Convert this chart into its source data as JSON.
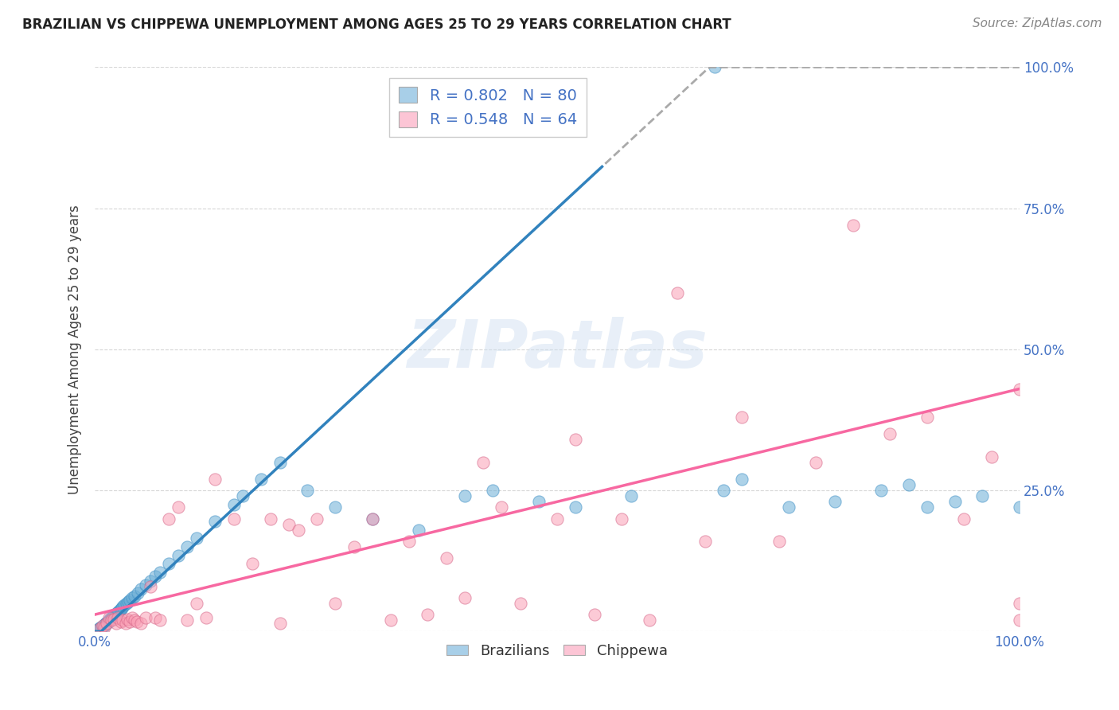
{
  "title": "BRAZILIAN VS CHIPPEWA UNEMPLOYMENT AMONG AGES 25 TO 29 YEARS CORRELATION CHART",
  "source": "Source: ZipAtlas.com",
  "ylabel": "Unemployment Among Ages 25 to 29 years",
  "xlim": [
    0,
    1.0
  ],
  "ylim": [
    0,
    1.0
  ],
  "blue_color": "#6baed6",
  "blue_fill": "#a8cfe8",
  "pink_color": "#fa9fb5",
  "pink_fill": "#fcc5d5",
  "regression_blue_color": "#3182bd",
  "regression_pink_color": "#f768a1",
  "regression_dashed_color": "#aaaaaa",
  "legend_R_blue": "0.802",
  "legend_N_blue": "80",
  "legend_R_pink": "0.548",
  "legend_N_pink": "64",
  "watermark": "ZIPatlas",
  "blue_slope": 1.52,
  "blue_intercept": -0.01,
  "pink_slope": 0.4,
  "pink_intercept": 0.03,
  "blue_scatter_x": [
    0.002,
    0.003,
    0.004,
    0.005,
    0.005,
    0.006,
    0.007,
    0.007,
    0.008,
    0.009,
    0.01,
    0.01,
    0.011,
    0.011,
    0.012,
    0.012,
    0.013,
    0.013,
    0.014,
    0.015,
    0.015,
    0.016,
    0.016,
    0.017,
    0.018,
    0.018,
    0.019,
    0.02,
    0.02,
    0.021,
    0.022,
    0.023,
    0.024,
    0.025,
    0.026,
    0.027,
    0.028,
    0.029,
    0.03,
    0.032,
    0.034,
    0.036,
    0.038,
    0.04,
    0.043,
    0.046,
    0.05,
    0.055,
    0.06,
    0.065,
    0.07,
    0.08,
    0.09,
    0.1,
    0.11,
    0.13,
    0.15,
    0.16,
    0.18,
    0.2,
    0.23,
    0.26,
    0.3,
    0.35,
    0.4,
    0.43,
    0.48,
    0.52,
    0.58,
    0.67,
    0.68,
    0.7,
    0.75,
    0.8,
    0.85,
    0.88,
    0.9,
    0.93,
    0.96,
    1.0
  ],
  "blue_scatter_y": [
    0.002,
    0.003,
    0.004,
    0.005,
    0.006,
    0.006,
    0.007,
    0.008,
    0.009,
    0.01,
    0.01,
    0.012,
    0.012,
    0.013,
    0.014,
    0.015,
    0.015,
    0.016,
    0.017,
    0.018,
    0.02,
    0.02,
    0.022,
    0.022,
    0.024,
    0.025,
    0.025,
    0.027,
    0.028,
    0.029,
    0.03,
    0.032,
    0.033,
    0.035,
    0.036,
    0.038,
    0.04,
    0.042,
    0.044,
    0.047,
    0.05,
    0.053,
    0.056,
    0.06,
    0.063,
    0.068,
    0.075,
    0.082,
    0.09,
    0.098,
    0.105,
    0.12,
    0.135,
    0.15,
    0.165,
    0.195,
    0.225,
    0.24,
    0.27,
    0.3,
    0.25,
    0.22,
    0.2,
    0.18,
    0.24,
    0.25,
    0.23,
    0.22,
    0.24,
    1.0,
    0.25,
    0.27,
    0.22,
    0.23,
    0.25,
    0.26,
    0.22,
    0.23,
    0.24,
    0.22
  ],
  "pink_scatter_x": [
    0.005,
    0.008,
    0.01,
    0.013,
    0.015,
    0.018,
    0.02,
    0.023,
    0.025,
    0.028,
    0.03,
    0.033,
    0.035,
    0.038,
    0.04,
    0.043,
    0.045,
    0.05,
    0.055,
    0.06,
    0.065,
    0.07,
    0.08,
    0.09,
    0.1,
    0.11,
    0.12,
    0.13,
    0.15,
    0.17,
    0.19,
    0.2,
    0.21,
    0.22,
    0.24,
    0.26,
    0.28,
    0.3,
    0.32,
    0.34,
    0.36,
    0.38,
    0.4,
    0.42,
    0.44,
    0.46,
    0.5,
    0.52,
    0.54,
    0.57,
    0.6,
    0.63,
    0.66,
    0.7,
    0.74,
    0.78,
    0.82,
    0.86,
    0.9,
    0.94,
    0.97,
    1.0,
    1.0,
    1.0
  ],
  "pink_scatter_y": [
    0.005,
    0.01,
    0.008,
    0.015,
    0.025,
    0.02,
    0.022,
    0.015,
    0.025,
    0.018,
    0.02,
    0.015,
    0.022,
    0.018,
    0.025,
    0.02,
    0.018,
    0.015,
    0.025,
    0.08,
    0.025,
    0.02,
    0.2,
    0.22,
    0.02,
    0.05,
    0.025,
    0.27,
    0.2,
    0.12,
    0.2,
    0.015,
    0.19,
    0.18,
    0.2,
    0.05,
    0.15,
    0.2,
    0.02,
    0.16,
    0.03,
    0.13,
    0.06,
    0.3,
    0.22,
    0.05,
    0.2,
    0.34,
    0.03,
    0.2,
    0.02,
    0.6,
    0.16,
    0.38,
    0.16,
    0.3,
    0.72,
    0.35,
    0.38,
    0.2,
    0.31,
    0.43,
    0.05,
    0.02
  ]
}
